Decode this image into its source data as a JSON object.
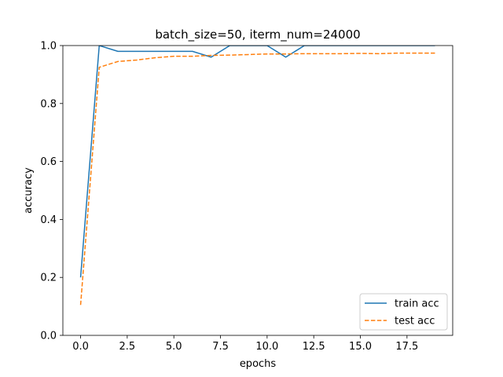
{
  "chart_data": {
    "type": "line",
    "title": "batch_size=50, iterm_num=24000",
    "xlabel": "epochs",
    "ylabel": "accuracy",
    "xlim": [
      -0.95,
      19.95
    ],
    "ylim": [
      0.0,
      1.0
    ],
    "xticks": [
      0.0,
      2.5,
      5.0,
      7.5,
      10.0,
      12.5,
      15.0,
      17.5
    ],
    "xtick_labels": [
      "0.0",
      "2.5",
      "5.0",
      "7.5",
      "10.0",
      "12.5",
      "15.0",
      "17.5"
    ],
    "yticks": [
      0.0,
      0.2,
      0.4,
      0.6,
      0.8,
      1.0
    ],
    "ytick_labels": [
      "0.0",
      "0.2",
      "0.4",
      "0.6",
      "0.8",
      "1.0"
    ],
    "grid": false,
    "legend": "lower-right",
    "series": [
      {
        "name": "train acc",
        "color": "#1f77b4",
        "dash": "solid",
        "x": [
          0,
          1,
          2,
          3,
          4,
          5,
          6,
          7,
          8,
          9,
          10,
          11,
          12,
          13,
          14,
          15,
          16,
          17,
          18,
          19
        ],
        "y": [
          0.2,
          1.0,
          0.98,
          0.98,
          0.98,
          0.98,
          0.98,
          0.96,
          1.0,
          1.0,
          1.0,
          0.96,
          1.0,
          1.0,
          1.0,
          1.0,
          1.0,
          1.0,
          1.0,
          1.0
        ]
      },
      {
        "name": "test acc",
        "color": "#ff7f0e",
        "dash": "dashed",
        "x": [
          0,
          1,
          2,
          3,
          4,
          5,
          6,
          7,
          8,
          9,
          10,
          11,
          12,
          13,
          14,
          15,
          16,
          17,
          18,
          19
        ],
        "y": [
          0.105,
          0.925,
          0.945,
          0.95,
          0.958,
          0.963,
          0.963,
          0.966,
          0.967,
          0.969,
          0.971,
          0.971,
          0.972,
          0.972,
          0.972,
          0.973,
          0.972,
          0.974,
          0.974,
          0.974
        ]
      }
    ]
  }
}
